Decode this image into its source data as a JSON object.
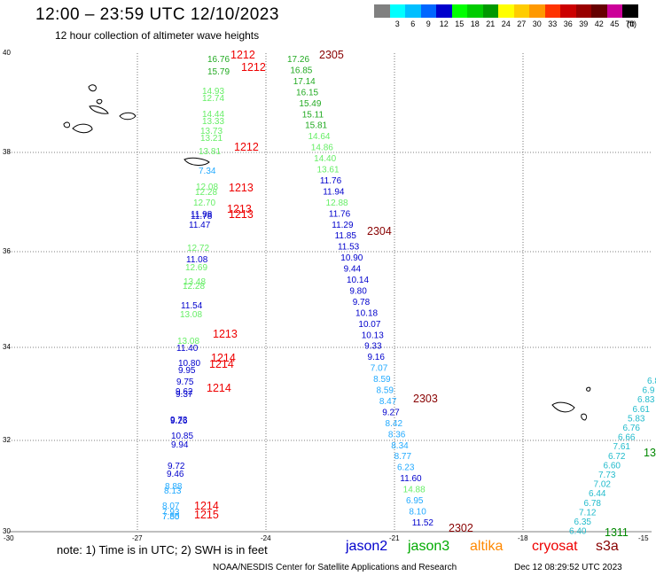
{
  "header": {
    "title": "12:00 – 23:59 UTC 12/10/2023",
    "subtitle": "12 hour collection of altimeter wave heights"
  },
  "legend": {
    "unit": "(ft)",
    "items": [
      {
        "label": "",
        "color": "#808080"
      },
      {
        "label": "3",
        "color": "#00ffff"
      },
      {
        "label": "6",
        "color": "#00bfff"
      },
      {
        "label": "9",
        "color": "#0066ff"
      },
      {
        "label": "12",
        "color": "#0000cc"
      },
      {
        "label": "15",
        "color": "#00ff00"
      },
      {
        "label": "18",
        "color": "#00cc00"
      },
      {
        "label": "21",
        "color": "#009900"
      },
      {
        "label": "24",
        "color": "#ffff00"
      },
      {
        "label": "27",
        "color": "#ffcc00"
      },
      {
        "label": "30",
        "color": "#ff9900"
      },
      {
        "label": "33",
        "color": "#ff3300"
      },
      {
        "label": "36",
        "color": "#cc0000"
      },
      {
        "label": "39",
        "color": "#990000"
      },
      {
        "label": "42",
        "color": "#660000"
      },
      {
        "label": "45",
        "color": "#cc0099"
      },
      {
        "label": "70",
        "color": "#000000"
      }
    ]
  },
  "axes": {
    "lat_labels": [
      "40",
      "38",
      "36",
      "34",
      "32",
      "30"
    ],
    "lon_labels": [
      "-30",
      "-27",
      "-24",
      "-21",
      "-18",
      "-15"
    ]
  },
  "colors": {
    "jason2": "#0000cc",
    "jason3": "#00aa00",
    "altika": "#ff8800",
    "cryosat": "#ee0000",
    "s3a": "#880000",
    "grid": "#555555"
  },
  "tracks": {
    "west": [
      {
        "t": "16.76",
        "c": "#22aa22"
      },
      {
        "t": "15.79",
        "c": "#22aa22"
      },
      {
        "t": "14.93",
        "c": "#66ee66"
      },
      {
        "t": "12.74",
        "c": "#66ee66"
      },
      {
        "t": "14.44",
        "c": "#66ee66"
      },
      {
        "t": "13.33",
        "c": "#66ee66"
      },
      {
        "t": "13.73",
        "c": "#66ee66"
      },
      {
        "t": "13.21",
        "c": "#66ee66"
      },
      {
        "t": "13.81",
        "c": "#66ee66"
      },
      {
        "t": "7.34",
        "c": "#22aaff"
      },
      {
        "t": "12.08",
        "c": "#66ee66"
      },
      {
        "t": "12.28",
        "c": "#66ee66"
      },
      {
        "t": "12.70",
        "c": "#66ee66"
      },
      {
        "t": "11.98",
        "c": "#0000cc"
      },
      {
        "t": "11.78",
        "c": "#0000cc"
      },
      {
        "t": "11.47",
        "c": "#0000cc"
      },
      {
        "t": "12.72",
        "c": "#66ee66"
      },
      {
        "t": "11.08",
        "c": "#0000cc"
      },
      {
        "t": "12.69",
        "c": "#66ee66"
      },
      {
        "t": "13.48",
        "c": "#66ee66"
      },
      {
        "t": "12.28",
        "c": "#66ee66"
      },
      {
        "t": "11.54",
        "c": "#0000cc"
      },
      {
        "t": "13.08",
        "c": "#66ee66"
      },
      {
        "t": "13.08",
        "c": "#66ee66"
      },
      {
        "t": "11.40",
        "c": "#0000cc"
      },
      {
        "t": "10.80",
        "c": "#0000cc"
      },
      {
        "t": "9.95",
        "c": "#0000cc"
      },
      {
        "t": "9.75",
        "c": "#0000cc"
      },
      {
        "t": "9.62",
        "c": "#0000cc"
      },
      {
        "t": "9.37",
        "c": "#0000cc"
      },
      {
        "t": "9.73",
        "c": "#0000cc"
      },
      {
        "t": "9.26",
        "c": "#0000cc"
      },
      {
        "t": "10.85",
        "c": "#0000cc"
      },
      {
        "t": "9.94",
        "c": "#0000cc"
      },
      {
        "t": "9.72",
        "c": "#0000cc"
      },
      {
        "t": "9.46",
        "c": "#0000cc"
      },
      {
        "t": "8.88",
        "c": "#22aaff"
      },
      {
        "t": "8.13",
        "c": "#22aaff"
      },
      {
        "t": "8.07",
        "c": "#22aaff"
      },
      {
        "t": "7.93",
        "c": "#22aaff"
      },
      {
        "t": "7.80",
        "c": "#22aaff"
      },
      {
        "t": "7.55",
        "c": "#22aaff"
      }
    ],
    "middle": [
      {
        "t": "17.26",
        "c": "#22aa22"
      },
      {
        "t": "16.85",
        "c": "#22aa22"
      },
      {
        "t": "17.14",
        "c": "#22aa22"
      },
      {
        "t": "16.15",
        "c": "#22aa22"
      },
      {
        "t": "15.49",
        "c": "#22aa22"
      },
      {
        "t": "15.11",
        "c": "#22aa22"
      },
      {
        "t": "15.81",
        "c": "#22aa22"
      },
      {
        "t": "14.64",
        "c": "#66ee66"
      },
      {
        "t": "14.86",
        "c": "#66ee66"
      },
      {
        "t": "14.40",
        "c": "#66ee66"
      },
      {
        "t": "13.61",
        "c": "#66ee66"
      },
      {
        "t": "11.76",
        "c": "#0000cc"
      },
      {
        "t": "11.94",
        "c": "#0000cc"
      },
      {
        "t": "12.88",
        "c": "#66ee66"
      },
      {
        "t": "11.76",
        "c": "#0000cc"
      },
      {
        "t": "11.29",
        "c": "#0000cc"
      },
      {
        "t": "11.85",
        "c": "#0000cc"
      },
      {
        "t": "11.53",
        "c": "#0000cc"
      },
      {
        "t": "10.90",
        "c": "#0000cc"
      },
      {
        "t": "9.44",
        "c": "#0000cc"
      },
      {
        "t": "10.14",
        "c": "#0000cc"
      },
      {
        "t": "9.80",
        "c": "#0000cc"
      },
      {
        "t": "9.78",
        "c": "#0000cc"
      },
      {
        "t": "10.18",
        "c": "#0000cc"
      },
      {
        "t": "10.07",
        "c": "#0000cc"
      },
      {
        "t": "10.13",
        "c": "#0000cc"
      },
      {
        "t": "9.33",
        "c": "#0000cc"
      },
      {
        "t": "9.16",
        "c": "#0000cc"
      },
      {
        "t": "7.07",
        "c": "#22aaff"
      },
      {
        "t": "8.59",
        "c": "#22aaff"
      },
      {
        "t": "8.59",
        "c": "#22aaff"
      },
      {
        "t": "8.47",
        "c": "#22aaff"
      },
      {
        "t": "9.27",
        "c": "#0000cc"
      },
      {
        "t": "8.42",
        "c": "#22aaff"
      },
      {
        "t": "8.36",
        "c": "#22aaff"
      },
      {
        "t": "8.34",
        "c": "#22aaff"
      },
      {
        "t": "8.77",
        "c": "#22aaff"
      },
      {
        "t": "6.23",
        "c": "#22aaff"
      },
      {
        "t": "11.60",
        "c": "#0000cc"
      },
      {
        "t": "14.88",
        "c": "#66ee66"
      },
      {
        "t": "6.95",
        "c": "#22aaff"
      },
      {
        "t": "8.10",
        "c": "#22aaff"
      },
      {
        "t": "11.52",
        "c": "#0000cc"
      }
    ],
    "east": [
      {
        "t": "6.8",
        "c": "#22bbcc"
      },
      {
        "t": "6.9",
        "c": "#22bbcc"
      },
      {
        "t": "6.83",
        "c": "#22bbcc"
      },
      {
        "t": "6.61",
        "c": "#22bbcc"
      },
      {
        "t": "5.83",
        "c": "#22bbcc"
      },
      {
        "t": "6.76",
        "c": "#22bbcc"
      },
      {
        "t": "6.66",
        "c": "#22bbcc"
      },
      {
        "t": "7.61",
        "c": "#22bbcc"
      },
      {
        "t": "6.72",
        "c": "#22bbcc"
      },
      {
        "t": "6.60",
        "c": "#22bbcc"
      },
      {
        "t": "7.73",
        "c": "#22bbcc"
      },
      {
        "t": "7.02",
        "c": "#22bbcc"
      },
      {
        "t": "6.44",
        "c": "#22bbcc"
      },
      {
        "t": "6.78",
        "c": "#22bbcc"
      },
      {
        "t": "7.12",
        "c": "#22bbcc"
      },
      {
        "t": "6.35",
        "c": "#22bbcc"
      },
      {
        "t": "6.40",
        "c": "#22bbcc"
      }
    ]
  },
  "time_tags": [
    {
      "t": "1212",
      "c": "#ee0000"
    },
    {
      "t": "1212",
      "c": "#ee0000"
    },
    {
      "t": "2305",
      "c": "#880000"
    },
    {
      "t": "1212",
      "c": "#ee0000"
    },
    {
      "t": "1213",
      "c": "#ee0000"
    },
    {
      "t": "1213",
      "c": "#ee0000"
    },
    {
      "t": "1213",
      "c": "#ee0000"
    },
    {
      "t": "2304",
      "c": "#880000"
    },
    {
      "t": "1213",
      "c": "#ee0000"
    },
    {
      "t": "1214",
      "c": "#ee0000"
    },
    {
      "t": "1214",
      "c": "#ee0000"
    },
    {
      "t": "1214",
      "c": "#ee0000"
    },
    {
      "t": "2303",
      "c": "#880000"
    },
    {
      "t": "1214",
      "c": "#ee0000"
    },
    {
      "t": "1215",
      "c": "#ee0000"
    },
    {
      "t": "2302",
      "c": "#880000"
    },
    {
      "t": "1311",
      "c": "#008800"
    },
    {
      "t": "13",
      "c": "#008800"
    }
  ],
  "footer": {
    "note": "note:  1) Time is in UTC;  2) SWH is in feet",
    "satellites": [
      {
        "name": "jason2",
        "color": "#0000cc"
      },
      {
        "name": "jason3",
        "color": "#00aa00"
      },
      {
        "name": "altika",
        "color": "#ff8800"
      },
      {
        "name": "cryosat",
        "color": "#ee0000"
      },
      {
        "name": "s3a",
        "color": "#880000"
      }
    ],
    "credit": "NOAA/NESDIS Center for Satellite Applications and Research",
    "timestamp": "Dec 12 08:29:52 UTC 2023"
  }
}
